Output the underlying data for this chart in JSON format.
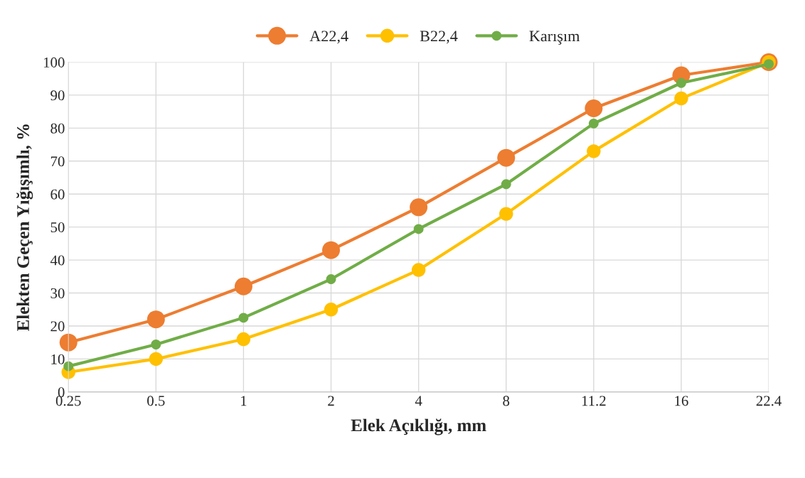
{
  "chart_data": {
    "type": "line",
    "xlabel": "Elek Açıklığı, mm",
    "ylabel": "Elekten Geçen Yığışımlı, %",
    "categories": [
      "0.25",
      "0.5",
      "1",
      "2",
      "4",
      "8",
      "11.2",
      "16",
      "22.4"
    ],
    "series": [
      {
        "name": "A22,4",
        "color": "#ed7d31",
        "values": [
          15,
          22,
          32,
          43,
          56,
          71,
          86,
          96,
          100
        ]
      },
      {
        "name": "B22,4",
        "color": "#ffc000",
        "values": [
          6,
          10,
          16,
          25,
          37,
          54,
          73,
          89,
          100
        ]
      },
      {
        "name": "Karışım",
        "color": "#70ad47",
        "values": [
          7.8,
          14.4,
          22.5,
          34.2,
          49.4,
          63,
          81.4,
          93.7,
          99.4
        ]
      }
    ],
    "ylim": [
      0,
      100
    ],
    "yticks": [
      0,
      10,
      20,
      30,
      40,
      50,
      60,
      70,
      80,
      90,
      100
    ],
    "grid": true,
    "legend": "top",
    "marker": "circle",
    "line_style": "solid"
  }
}
